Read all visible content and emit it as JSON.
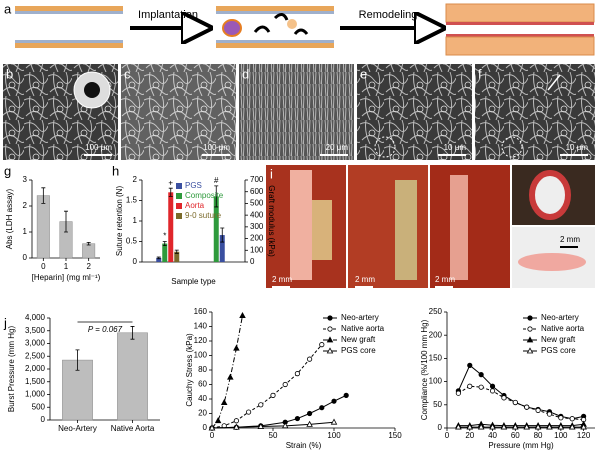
{
  "schematic": {
    "steps": [
      "Implantation",
      "Remodeling"
    ]
  },
  "panel_labels": [
    "a",
    "b",
    "c",
    "d",
    "e",
    "f",
    "g",
    "h",
    "i",
    "j"
  ],
  "micrograph_scale_bars": [
    "100 μm",
    "100 μm",
    "20 μm",
    "10 μm",
    "10 μm"
  ],
  "photo_scale_bars": [
    "2 mm",
    "2 mm",
    "2 mm",
    "2 mm"
  ],
  "chart_data": [
    {
      "type": "bar",
      "ylabel": "Abs (LDH assay)",
      "xlabel": "[Heparin] (mg ml⁻¹)",
      "categories": [
        "0",
        "1",
        "2"
      ],
      "values": [
        2.4,
        1.4,
        0.55
      ],
      "errors": [
        0.3,
        0.4,
        0.05
      ],
      "color": "#bdbdbd",
      "ylim": [
        0,
        3
      ],
      "yticks": [
        0,
        1,
        2,
        3
      ]
    },
    {
      "type": "grouped_bar",
      "xlabel": "Sample type",
      "ylabel": "Suture retention (N)",
      "y2label": "Graft modulus (kPa)",
      "categories": [
        null,
        null
      ],
      "series": [
        {
          "name": "PGS",
          "color": "#3a4fa0",
          "values": [
            0.1,
            null
          ],
          "errors": [
            0.02,
            null
          ]
        },
        {
          "name": "Composite",
          "color": "#2e9a3c",
          "values": [
            0.45,
            null
          ],
          "errors": [
            0.05,
            null
          ]
        },
        {
          "name": "Aorta",
          "color": "#e0262b",
          "values": [
            1.7,
            null
          ],
          "errors": [
            0.1,
            null
          ]
        },
        {
          "name": "9-0 suture",
          "color": "#7a6a2a",
          "values": [
            0.25,
            null
          ],
          "errors": [
            0.04,
            null
          ]
        },
        {
          "color": "#2e9a3c",
          "axis": "y2",
          "values": [
            null,
            560
          ],
          "errors": [
            null,
            90
          ]
        },
        {
          "color": "#3a4fa0",
          "axis": "y2",
          "values": [
            null,
            230
          ],
          "errors": [
            null,
            60
          ]
        }
      ],
      "annotations": [
        "*",
        "+",
        "#"
      ],
      "ylim": [
        0,
        2
      ],
      "yticks": [
        0,
        0.5,
        1,
        1.5,
        2
      ],
      "y2lim": [
        0,
        700
      ],
      "y2ticks": [
        0,
        100,
        200,
        300,
        400,
        500,
        600,
        700
      ]
    },
    {
      "type": "bar",
      "ylabel": "Burst Pressure (mm Hg)",
      "categories": [
        "Neo-Artery",
        "Native Aorta"
      ],
      "values": [
        2350,
        3420
      ],
      "errors": [
        400,
        250
      ],
      "color": "#bdbdbd",
      "annotation": "P = 0.067",
      "ylim": [
        0,
        4000
      ],
      "yticks": [
        0,
        500,
        {
          "value": 1000,
          "label": "1,000"
        },
        {
          "value": 1500,
          "label": "1,500"
        },
        {
          "value": 2000,
          "label": "2,000"
        },
        {
          "value": 2500,
          "label": "2,500"
        },
        {
          "value": 3000,
          "label": "3,000"
        },
        {
          "value": 3500,
          "label": "3,500"
        },
        {
          "value": 4000,
          "label": "4,000"
        }
      ]
    },
    {
      "type": "line",
      "xlabel": "Strain (%)",
      "ylabel": "Cauchy Stress (kPa)",
      "xlim": [
        0,
        150
      ],
      "xticks": [
        0,
        50,
        100,
        150
      ],
      "ylim": [
        0,
        160
      ],
      "yticks": [
        0,
        20,
        40,
        60,
        80,
        100,
        120,
        140,
        160
      ],
      "series": [
        {
          "name": "Neo-artery",
          "color": "#000000",
          "marker": "circle",
          "dash": "solid",
          "x": [
            0,
            20,
            40,
            60,
            70,
            80,
            90,
            100,
            110
          ],
          "values": [
            0,
            1,
            3,
            8,
            13,
            20,
            28,
            37,
            45
          ]
        },
        {
          "name": "Native aorta",
          "color": "#000000",
          "marker": "circle-open",
          "dash": "dashed",
          "x": [
            0,
            10,
            20,
            30,
            40,
            50,
            60,
            70,
            80,
            90
          ],
          "values": [
            0,
            3,
            10,
            22,
            32,
            45,
            60,
            75,
            95,
            115
          ]
        },
        {
          "name": "New graft",
          "color": "#000000",
          "marker": "triangle",
          "dash": "dashdot",
          "x": [
            0,
            5,
            10,
            15,
            20,
            25
          ],
          "values": [
            0,
            10,
            35,
            70,
            110,
            155
          ]
        },
        {
          "name": "PGS core",
          "color": "#000000",
          "marker": "triangle-open",
          "dash": "solid",
          "x": [
            0,
            20,
            40,
            60,
            80,
            100
          ],
          "values": [
            0,
            1,
            2,
            3,
            5,
            8
          ]
        }
      ]
    },
    {
      "type": "line",
      "xlabel": "Pressure (mm Hg)",
      "ylabel": "Compliance (%/100 mm Hg)",
      "xlim": [
        0,
        130
      ],
      "xticks": [
        0,
        20,
        40,
        60,
        80,
        100,
        120
      ],
      "ylim": [
        0,
        250
      ],
      "yticks": [
        0,
        50,
        100,
        150,
        200,
        250
      ],
      "series": [
        {
          "name": "Neo-artery",
          "color": "#000000",
          "marker": "circle",
          "dash": "solid",
          "x": [
            10,
            20,
            30,
            40,
            50,
            60,
            70,
            80,
            90,
            100,
            110,
            120
          ],
          "values": [
            80,
            135,
            115,
            90,
            70,
            55,
            45,
            40,
            35,
            25,
            20,
            25
          ]
        },
        {
          "name": "Native aorta",
          "color": "#000000",
          "marker": "circle-open",
          "dash": "dashed",
          "x": [
            10,
            20,
            30,
            40,
            50,
            60,
            70,
            80,
            90,
            100,
            110,
            120
          ],
          "values": [
            75,
            90,
            88,
            80,
            65,
            55,
            45,
            38,
            30,
            22,
            20,
            18
          ]
        },
        {
          "name": "New graft",
          "color": "#000000",
          "marker": "triangle",
          "dash": "solid",
          "x": [
            10,
            20,
            30,
            40,
            50,
            60,
            70,
            80,
            90,
            100,
            110,
            120
          ],
          "values": [
            5,
            5,
            8,
            6,
            5,
            5,
            5,
            5,
            5,
            5,
            5,
            8
          ]
        },
        {
          "name": "PGS core",
          "color": "#000000",
          "marker": "triangle-open",
          "dash": "solid",
          "x": [
            10,
            20,
            30,
            40,
            50,
            60,
            70,
            80,
            90,
            100,
            110,
            120
          ],
          "values": [
            2,
            2,
            2,
            2,
            2,
            2,
            2,
            2,
            2,
            2,
            2,
            2
          ]
        }
      ]
    }
  ]
}
